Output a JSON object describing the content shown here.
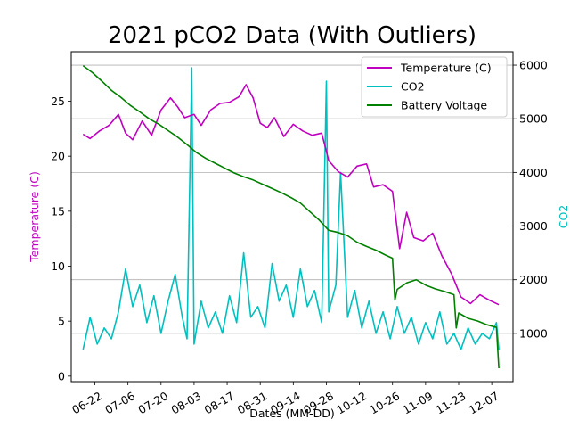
{
  "chart_data": {
    "type": "line",
    "title": "2021 pCO2 Data (With Outliers)",
    "xlabel": "Dates (MM-DD)",
    "ylabel_left": "Temperature (C)",
    "ylabel_right": "CO2",
    "x_ticks": [
      "06-22",
      "07-06",
      "07-20",
      "08-03",
      "08-17",
      "08-31",
      "09-14",
      "09-28",
      "10-12",
      "10-26",
      "11-09",
      "11-23",
      "12-07"
    ],
    "xlim": [
      "2021-06-12",
      "2021-12-16"
    ],
    "ylim_left": [
      -0.5,
      29.5
    ],
    "y_ticks_left": [
      0,
      5,
      10,
      15,
      20,
      25
    ],
    "ylim_right": [
      100,
      6250
    ],
    "y_ticks_right": [
      1000,
      2000,
      3000,
      4000,
      5000,
      6000
    ],
    "grid": "horizontal lines at right-axis ticks",
    "legend_position": "top-right",
    "colors": {
      "temperature": "#bf00bf",
      "co2": "#00bfbf",
      "battery": "#008000",
      "left_label": "#bf00bf",
      "right_label": "#00bfbf"
    },
    "series": [
      {
        "name": "Temperature (C)",
        "axis": "left",
        "color": "#bf00bf",
        "points": [
          [
            "2021-06-17",
            22.0
          ],
          [
            "2021-06-20",
            21.6
          ],
          [
            "2021-06-24",
            22.3
          ],
          [
            "2021-06-28",
            22.8
          ],
          [
            "2021-07-02",
            23.8
          ],
          [
            "2021-07-05",
            22.1
          ],
          [
            "2021-07-08",
            21.5
          ],
          [
            "2021-07-12",
            23.2
          ],
          [
            "2021-07-16",
            21.9
          ],
          [
            "2021-07-20",
            24.2
          ],
          [
            "2021-07-24",
            25.3
          ],
          [
            "2021-07-27",
            24.5
          ],
          [
            "2021-07-30",
            23.5
          ],
          [
            "2021-08-03",
            23.8
          ],
          [
            "2021-08-06",
            22.8
          ],
          [
            "2021-08-10",
            24.2
          ],
          [
            "2021-08-14",
            24.8
          ],
          [
            "2021-08-18",
            24.9
          ],
          [
            "2021-08-22",
            25.4
          ],
          [
            "2021-08-25",
            26.5
          ],
          [
            "2021-08-28",
            25.3
          ],
          [
            "2021-08-31",
            23.0
          ],
          [
            "2021-09-03",
            22.6
          ],
          [
            "2021-09-06",
            23.5
          ],
          [
            "2021-09-10",
            21.8
          ],
          [
            "2021-09-14",
            22.9
          ],
          [
            "2021-09-18",
            22.3
          ],
          [
            "2021-09-22",
            21.9
          ],
          [
            "2021-09-26",
            22.1
          ],
          [
            "2021-09-29",
            19.6
          ],
          [
            "2021-10-03",
            18.6
          ],
          [
            "2021-10-07",
            18.1
          ],
          [
            "2021-10-11",
            19.1
          ],
          [
            "2021-10-15",
            19.3
          ],
          [
            "2021-10-18",
            17.2
          ],
          [
            "2021-10-22",
            17.4
          ],
          [
            "2021-10-26",
            16.8
          ],
          [
            "2021-10-29",
            11.6
          ],
          [
            "2021-11-01",
            14.9
          ],
          [
            "2021-11-04",
            12.6
          ],
          [
            "2021-11-08",
            12.3
          ],
          [
            "2021-11-12",
            13.0
          ],
          [
            "2021-11-16",
            10.9
          ],
          [
            "2021-11-20",
            9.3
          ],
          [
            "2021-11-24",
            7.2
          ],
          [
            "2021-11-28",
            6.6
          ],
          [
            "2021-12-02",
            7.4
          ],
          [
            "2021-12-06",
            6.9
          ],
          [
            "2021-12-10",
            6.5
          ]
        ]
      },
      {
        "name": "CO2",
        "axis": "right",
        "color": "#00bfbf",
        "points": [
          [
            "2021-06-17",
            700
          ],
          [
            "2021-06-20",
            1300
          ],
          [
            "2021-06-23",
            800
          ],
          [
            "2021-06-26",
            1100
          ],
          [
            "2021-06-29",
            900
          ],
          [
            "2021-07-02",
            1400
          ],
          [
            "2021-07-05",
            2200
          ],
          [
            "2021-07-08",
            1500
          ],
          [
            "2021-07-11",
            1900
          ],
          [
            "2021-07-14",
            1200
          ],
          [
            "2021-07-17",
            1700
          ],
          [
            "2021-07-20",
            1000
          ],
          [
            "2021-07-23",
            1600
          ],
          [
            "2021-07-26",
            2100
          ],
          [
            "2021-07-29",
            1300
          ],
          [
            "2021-07-31",
            900
          ],
          [
            "2021-08-02",
            5950
          ],
          [
            "2021-08-03",
            800
          ],
          [
            "2021-08-06",
            1600
          ],
          [
            "2021-08-09",
            1100
          ],
          [
            "2021-08-12",
            1400
          ],
          [
            "2021-08-15",
            1000
          ],
          [
            "2021-08-18",
            1700
          ],
          [
            "2021-08-21",
            1200
          ],
          [
            "2021-08-24",
            2500
          ],
          [
            "2021-08-27",
            1300
          ],
          [
            "2021-08-30",
            1500
          ],
          [
            "2021-09-02",
            1100
          ],
          [
            "2021-09-05",
            2300
          ],
          [
            "2021-09-08",
            1600
          ],
          [
            "2021-09-11",
            1900
          ],
          [
            "2021-09-14",
            1300
          ],
          [
            "2021-09-17",
            2200
          ],
          [
            "2021-09-20",
            1500
          ],
          [
            "2021-09-23",
            1800
          ],
          [
            "2021-09-26",
            1200
          ],
          [
            "2021-09-28",
            5700
          ],
          [
            "2021-09-29",
            1400
          ],
          [
            "2021-10-02",
            1900
          ],
          [
            "2021-10-04",
            4000
          ],
          [
            "2021-10-07",
            1300
          ],
          [
            "2021-10-10",
            1800
          ],
          [
            "2021-10-13",
            1100
          ],
          [
            "2021-10-16",
            1600
          ],
          [
            "2021-10-19",
            1000
          ],
          [
            "2021-10-22",
            1400
          ],
          [
            "2021-10-25",
            900
          ],
          [
            "2021-10-28",
            1500
          ],
          [
            "2021-10-31",
            1000
          ],
          [
            "2021-11-03",
            1300
          ],
          [
            "2021-11-06",
            800
          ],
          [
            "2021-11-09",
            1200
          ],
          [
            "2021-11-12",
            900
          ],
          [
            "2021-11-15",
            1400
          ],
          [
            "2021-11-18",
            800
          ],
          [
            "2021-11-21",
            1000
          ],
          [
            "2021-11-24",
            700
          ],
          [
            "2021-11-27",
            1100
          ],
          [
            "2021-11-30",
            800
          ],
          [
            "2021-12-03",
            1000
          ],
          [
            "2021-12-06",
            900
          ],
          [
            "2021-12-09",
            1200
          ],
          [
            "2021-12-10",
            700
          ]
        ]
      },
      {
        "name": "Battery Voltage",
        "axis": "right",
        "color": "#008000",
        "points": [
          [
            "2021-06-17",
            5990
          ],
          [
            "2021-06-21",
            5860
          ],
          [
            "2021-06-25",
            5700
          ],
          [
            "2021-06-29",
            5530
          ],
          [
            "2021-07-03",
            5400
          ],
          [
            "2021-07-07",
            5250
          ],
          [
            "2021-07-11",
            5130
          ],
          [
            "2021-07-15",
            5000
          ],
          [
            "2021-07-19",
            4900
          ],
          [
            "2021-07-23",
            4780
          ],
          [
            "2021-07-27",
            4660
          ],
          [
            "2021-07-31",
            4520
          ],
          [
            "2021-08-04",
            4370
          ],
          [
            "2021-08-08",
            4260
          ],
          [
            "2021-08-12",
            4170
          ],
          [
            "2021-08-16",
            4080
          ],
          [
            "2021-08-20",
            3990
          ],
          [
            "2021-08-24",
            3920
          ],
          [
            "2021-08-28",
            3860
          ],
          [
            "2021-09-01",
            3780
          ],
          [
            "2021-09-05",
            3700
          ],
          [
            "2021-09-09",
            3620
          ],
          [
            "2021-09-13",
            3530
          ],
          [
            "2021-09-17",
            3430
          ],
          [
            "2021-09-21",
            3270
          ],
          [
            "2021-09-25",
            3110
          ],
          [
            "2021-09-29",
            2920
          ],
          [
            "2021-10-03",
            2880
          ],
          [
            "2021-10-07",
            2820
          ],
          [
            "2021-10-11",
            2700
          ],
          [
            "2021-10-15",
            2620
          ],
          [
            "2021-10-19",
            2550
          ],
          [
            "2021-10-23",
            2460
          ],
          [
            "2021-10-26",
            2400
          ],
          [
            "2021-10-27",
            1620
          ],
          [
            "2021-10-28",
            1820
          ],
          [
            "2021-11-01",
            1940
          ],
          [
            "2021-11-05",
            2000
          ],
          [
            "2021-11-09",
            1900
          ],
          [
            "2021-11-13",
            1830
          ],
          [
            "2021-11-17",
            1780
          ],
          [
            "2021-11-21",
            1720
          ],
          [
            "2021-11-22",
            1100
          ],
          [
            "2021-11-23",
            1380
          ],
          [
            "2021-11-27",
            1280
          ],
          [
            "2021-12-01",
            1230
          ],
          [
            "2021-12-05",
            1160
          ],
          [
            "2021-12-09",
            1110
          ],
          [
            "2021-12-10",
            350
          ]
        ]
      }
    ]
  }
}
